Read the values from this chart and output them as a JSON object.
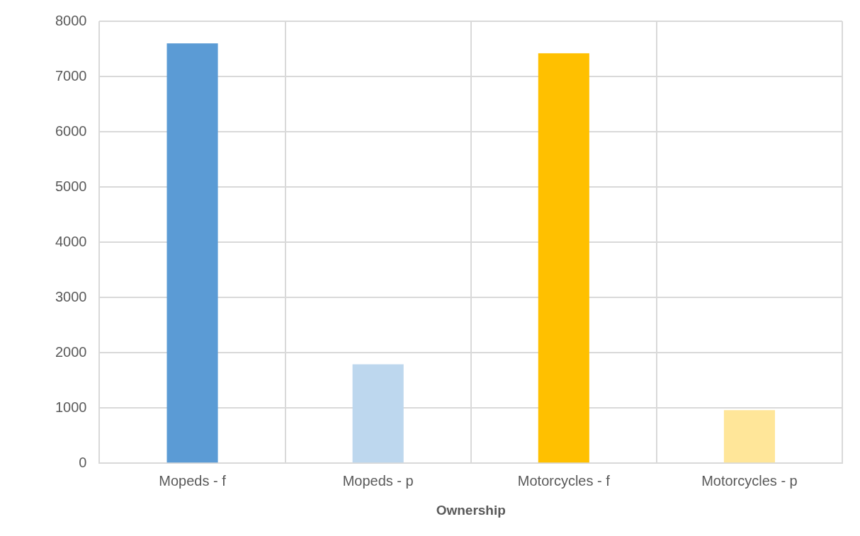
{
  "chart_data": {
    "type": "bar",
    "xlabel": "Ownership",
    "categories": [
      "Mopeds - f",
      "Mopeds - p",
      "Motorcycles - f",
      "Motorcycles - p"
    ],
    "values": [
      7600,
      1790,
      7420,
      960
    ],
    "colors": [
      "#5b9bd5",
      "#bdd7ee",
      "#ffc000",
      "#ffe699"
    ],
    "ylim": [
      0,
      8000
    ],
    "yticks": [
      0,
      1000,
      2000,
      3000,
      4000,
      5000,
      6000,
      7000,
      8000
    ],
    "grid": true,
    "legend": false
  }
}
